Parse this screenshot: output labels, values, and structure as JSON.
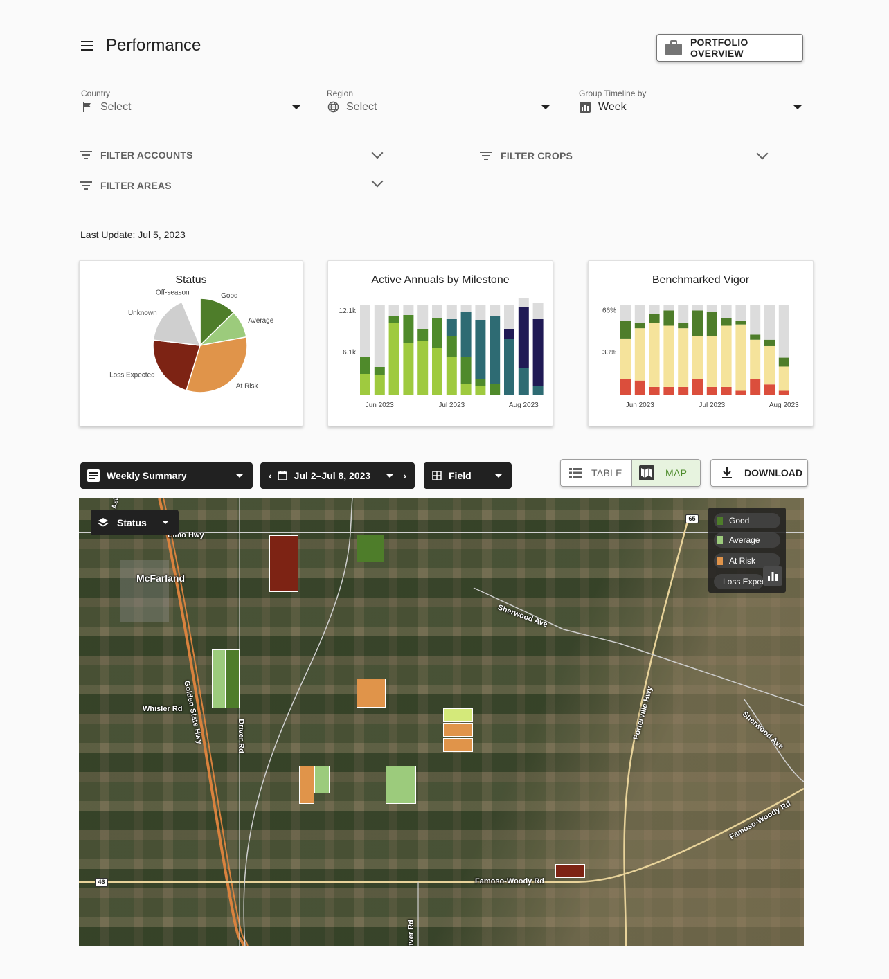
{
  "header": {
    "title": "Performance",
    "portfolio_label": "PORTFOLIO OVERVIEW"
  },
  "selects": {
    "country": {
      "label": "Country",
      "value": "Select"
    },
    "region": {
      "label": "Region",
      "value": "Select"
    },
    "timeline": {
      "label": "Group Timeline by",
      "value": "Week"
    }
  },
  "filters": {
    "accounts": "FILTER ACCOUNTS",
    "crops": "FILTER CROPS",
    "areas": "FILTER AREAS"
  },
  "last_update": "Last Update: Jul 5, 2023",
  "colors": {
    "good": "#4e7d2a",
    "average": "#9ccb7c",
    "at_risk": "#e0944a",
    "loss_expected": "#7d2314",
    "unknown": "#cfcfcf",
    "off_season": "#ffffff"
  },
  "chart_data": [
    {
      "type": "pie",
      "title": "Status",
      "slices": [
        {
          "label": "Good",
          "value": 12,
          "color": "#4e7d2a"
        },
        {
          "label": "Average",
          "value": 9,
          "color": "#9ccb7c"
        },
        {
          "label": "At Risk",
          "value": 31,
          "color": "#e0944a"
        },
        {
          "label": "Loss Expected",
          "value": 21,
          "color": "#7d2314"
        },
        {
          "label": "Unknown",
          "value": 16,
          "color": "#cfcfcf"
        },
        {
          "label": "Off-season",
          "value": 6,
          "color": "#ffffff"
        }
      ]
    },
    {
      "type": "bar",
      "stacked": true,
      "title": "Active Annuals by Milestone",
      "yticks": [
        "6.1k",
        "12.1k"
      ],
      "ytick_values": [
        6100,
        12100
      ],
      "ymax": 12900,
      "xticks": [
        {
          "label": "Jun 2023",
          "index": 1
        },
        {
          "label": "Jul 2023",
          "index": 6
        },
        {
          "label": "Aug 2023",
          "index": 11
        }
      ],
      "series_colors": [
        "#9fca3f",
        "#4f8a2b",
        "#2e6b73",
        "#201a55",
        "#dcdcdc"
      ],
      "bars": [
        [
          3000,
          2400,
          0,
          0,
          7500
        ],
        [
          2800,
          1200,
          0,
          0,
          8900
        ],
        [
          10300,
          1000,
          0,
          0,
          1600
        ],
        [
          7500,
          4000,
          0,
          0,
          1400
        ],
        [
          7800,
          1700,
          0,
          0,
          3400
        ],
        [
          6800,
          4200,
          0,
          0,
          1900
        ],
        [
          5500,
          3000,
          2400,
          0,
          2000
        ],
        [
          1500,
          4000,
          6500,
          0,
          900
        ],
        [
          1200,
          1100,
          8500,
          0,
          2100
        ],
        [
          0,
          1500,
          9800,
          0,
          1600
        ],
        [
          0,
          0,
          8100,
          1400,
          3400
        ],
        [
          0,
          0,
          3800,
          8800,
          1400
        ],
        [
          0,
          0,
          1300,
          9600,
          2300
        ]
      ]
    },
    {
      "type": "bar",
      "stacked": true,
      "title": "Benchmarked Vigor",
      "yticks": [
        "33%",
        "66%"
      ],
      "ytick_values": [
        33,
        66
      ],
      "ymax": 70,
      "xticks": [
        {
          "label": "Jun 2023",
          "index": 1
        },
        {
          "label": "Jul 2023",
          "index": 6
        },
        {
          "label": "Aug 2023",
          "index": 11
        }
      ],
      "series_colors": [
        "#db4e3c",
        "#f5e39b",
        "#4e7d2a",
        "#dcdcdc"
      ],
      "bars": [
        [
          12,
          32,
          14,
          12
        ],
        [
          11,
          41,
          4,
          14
        ],
        [
          6,
          50,
          7,
          7
        ],
        [
          6,
          48,
          12,
          4
        ],
        [
          6,
          46,
          4,
          14
        ],
        [
          12,
          34,
          20,
          4
        ],
        [
          6,
          40,
          19,
          5
        ],
        [
          6,
          48,
          6,
          10
        ],
        [
          3,
          52,
          3,
          12
        ],
        [
          12,
          31,
          4,
          23
        ],
        [
          8,
          30,
          5,
          27
        ],
        [
          3,
          19,
          7,
          41
        ]
      ]
    }
  ],
  "toolbar": {
    "summary_label": "Weekly Summary",
    "date_label": "Jul 2–Jul 8, 2023",
    "field_label": "Field",
    "table_label": "TABLE",
    "map_label": "MAP",
    "download_label": "DOWNLOAD"
  },
  "map": {
    "layer_label": "Status",
    "places": [
      "McFarland",
      "Elmo Hwy",
      "Sherwood Ave",
      "Whisler Rd",
      "Golden State Hwy",
      "Driver Rd",
      "Porterville Hwy",
      "Sherwood Ave",
      "Famoso-Woody Rd",
      "Famoso-Woody Rd",
      "Asia Ave",
      "Driver Rd"
    ],
    "shields": [
      "65",
      "46"
    ],
    "legend": [
      "Good",
      "Average",
      "At Risk",
      "Loss Expected"
    ]
  }
}
